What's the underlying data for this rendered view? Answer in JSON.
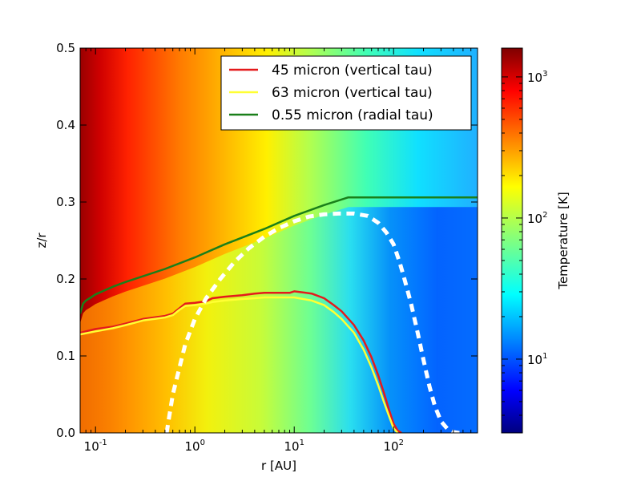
{
  "chart_data": {
    "type": "heatmap",
    "xlabel": "r [AU]",
    "ylabel": "z/r",
    "xscale": "log",
    "xlim": [
      0.07,
      700
    ],
    "ylim": [
      0,
      0.5
    ],
    "x_ticks": [
      {
        "value": 0.1,
        "base": "10",
        "exp": "-1"
      },
      {
        "value": 1,
        "base": "10",
        "exp": "0"
      },
      {
        "value": 10,
        "base": "10",
        "exp": "1"
      },
      {
        "value": 100,
        "base": "10",
        "exp": "2"
      }
    ],
    "y_ticks": [
      "0.0",
      "0.1",
      "0.2",
      "0.3",
      "0.4",
      "0.5"
    ],
    "colorbar": {
      "label": "Temperature [K]",
      "scale": "log",
      "range": [
        3,
        1600
      ],
      "colormap": "jet",
      "ticks": [
        {
          "value": 10,
          "base": "10",
          "exp": "1"
        },
        {
          "value": 100,
          "base": "10",
          "exp": "2"
        },
        {
          "value": 1000,
          "base": "10",
          "exp": "3"
        }
      ]
    },
    "legend": {
      "placement": "top-right",
      "entries": [
        {
          "label": "45 micron (vertical tau)",
          "color": "#e41a1c"
        },
        {
          "label": "63 micron (vertical tau)",
          "color": "#ffff33"
        },
        {
          "label": "0.55 micron (radial tau)",
          "color": "#1a7f1a"
        }
      ]
    },
    "series": [
      {
        "name": "45 micron (vertical tau)",
        "color": "#e41a1c",
        "x": [
          0.07,
          0.1,
          0.15,
          0.2,
          0.3,
          0.5,
          0.6,
          0.7,
          0.8,
          1.0,
          1.3,
          1.5,
          2,
          3,
          4,
          5,
          7,
          9,
          10,
          15,
          20,
          25,
          30,
          40,
          50,
          60,
          70,
          80,
          90,
          100,
          110,
          120
        ],
        "y": [
          0.13,
          0.135,
          0.138,
          0.142,
          0.148,
          0.152,
          0.155,
          0.162,
          0.168,
          0.169,
          0.171,
          0.175,
          0.177,
          0.179,
          0.181,
          0.182,
          0.182,
          0.182,
          0.184,
          0.181,
          0.175,
          0.166,
          0.158,
          0.14,
          0.12,
          0.098,
          0.075,
          0.052,
          0.03,
          0.012,
          0.003,
          0.0
        ]
      },
      {
        "name": "63 micron (vertical tau)",
        "color": "#ffff33",
        "x": [
          0.07,
          0.1,
          0.15,
          0.2,
          0.3,
          0.5,
          0.6,
          0.7,
          0.8,
          1.0,
          1.3,
          1.5,
          2,
          3,
          4,
          5,
          7,
          9,
          10,
          15,
          20,
          25,
          30,
          40,
          50,
          60,
          70,
          80,
          90,
          100,
          110
        ],
        "y": [
          0.128,
          0.132,
          0.136,
          0.14,
          0.146,
          0.15,
          0.153,
          0.16,
          0.165,
          0.166,
          0.168,
          0.17,
          0.172,
          0.174,
          0.175,
          0.176,
          0.176,
          0.176,
          0.176,
          0.172,
          0.166,
          0.157,
          0.148,
          0.13,
          0.108,
          0.085,
          0.062,
          0.04,
          0.022,
          0.006,
          0.0
        ]
      },
      {
        "name": "0.55 micron (radial tau)",
        "color": "#1a7f1a",
        "x": [
          0.07,
          0.075,
          0.08,
          0.09,
          0.1,
          0.15,
          0.2,
          0.5,
          1,
          2,
          5,
          10,
          20,
          35,
          50,
          100,
          700
        ],
        "y": [
          0.155,
          0.168,
          0.172,
          0.176,
          0.18,
          0.19,
          0.196,
          0.213,
          0.228,
          0.245,
          0.265,
          0.282,
          0.296,
          0.306,
          0.306,
          0.306,
          0.306
        ]
      },
      {
        "name": "",
        "color": "#ffffff",
        "style": "dashed",
        "x": [
          0.52,
          0.55,
          0.6,
          0.7,
          0.8,
          1.0,
          1.3,
          1.8,
          2.5,
          3.5,
          5,
          7,
          10,
          14,
          20,
          28,
          40,
          55,
          70,
          85,
          100,
          115,
          130,
          150,
          175,
          200,
          230,
          260,
          300,
          350,
          400,
          450,
          500,
          520
        ],
        "y": [
          0.0,
          0.02,
          0.05,
          0.085,
          0.115,
          0.148,
          0.175,
          0.2,
          0.222,
          0.24,
          0.255,
          0.266,
          0.275,
          0.281,
          0.284,
          0.285,
          0.285,
          0.282,
          0.273,
          0.26,
          0.245,
          0.222,
          0.198,
          0.168,
          0.13,
          0.095,
          0.06,
          0.035,
          0.015,
          0.005,
          0.001,
          0.0,
          0.0,
          0.0
        ]
      }
    ]
  }
}
